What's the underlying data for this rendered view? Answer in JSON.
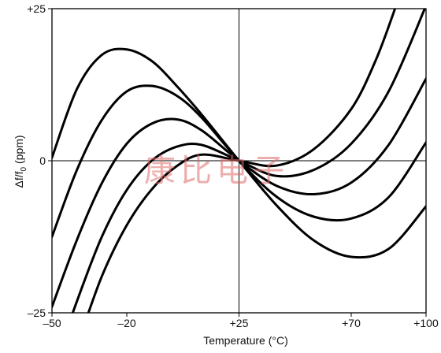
{
  "chart_data": {
    "type": "line",
    "xlabel": "Temperature (°C)",
    "ylabel": "Δf/f",
    "ylabel_sub": "0",
    "ylabel_unit": " (ppm)",
    "xlim": [
      -50,
      100
    ],
    "ylim": [
      -25,
      25
    ],
    "grid": false,
    "x_ticks": [
      {
        "value": -50,
        "label": "–50"
      },
      {
        "value": -20,
        "label": "–20"
      },
      {
        "value": 25,
        "label": "+25"
      },
      {
        "value": 70,
        "label": "+70"
      },
      {
        "value": 100,
        "label": "+100"
      }
    ],
    "y_ticks": [
      {
        "value": 25,
        "label": "+25"
      },
      {
        "value": 0,
        "label": "0"
      },
      {
        "value": -25,
        "label": "–25"
      }
    ],
    "reference_lines": {
      "x": 25,
      "y": 0
    },
    "series": [
      {
        "x": [
          -50,
          -40,
          -30,
          -20,
          -10,
          0,
          10,
          25,
          40,
          55,
          70,
          85,
          100
        ],
        "y": [
          0.5,
          11.8,
          17.4,
          18.3,
          16.4,
          12.3,
          7.6,
          0,
          -7.3,
          -13.1,
          -15.8,
          -14.5,
          -7.5
        ]
      },
      {
        "x": [
          -50,
          -40,
          -30,
          -20,
          -10,
          0,
          10,
          25,
          40,
          55,
          70,
          85,
          100
        ],
        "y": [
          -12.5,
          -1.5,
          6.7,
          11.4,
          12.3,
          10.7,
          7.1,
          0,
          -5.9,
          -9.2,
          -9.5,
          -6.0,
          3.0
        ]
      },
      {
        "x": [
          -50,
          -40,
          -30,
          -20,
          -10,
          0,
          10,
          25,
          40,
          55,
          70,
          85,
          100
        ],
        "y": [
          -24.0,
          -13.0,
          -3.7,
          2.8,
          6.1,
          6.8,
          5.0,
          0,
          -4.1,
          -5.5,
          -3.6,
          2.6,
          13.5
        ]
      },
      {
        "x": [
          -47,
          -40,
          -30,
          -20,
          -10,
          0,
          10,
          25,
          40,
          55,
          70,
          85,
          100
        ],
        "y": [
          -31.4,
          -23.1,
          -12.5,
          -4.8,
          0.0,
          2.3,
          2.6,
          0,
          -2.5,
          -1.5,
          2.8,
          11.4,
          25.5
        ]
      },
      {
        "x": [
          -43,
          -40,
          -30,
          -20,
          -10,
          0,
          10,
          25,
          40,
          55,
          70,
          80,
          88
        ],
        "y": [
          -31.3,
          -30.2,
          -19.0,
          -10.6,
          -4.7,
          -0.9,
          1.0,
          0,
          -0.8,
          1.9,
          8.5,
          16.7,
          25.5
        ]
      }
    ]
  },
  "watermark": "康比电子"
}
